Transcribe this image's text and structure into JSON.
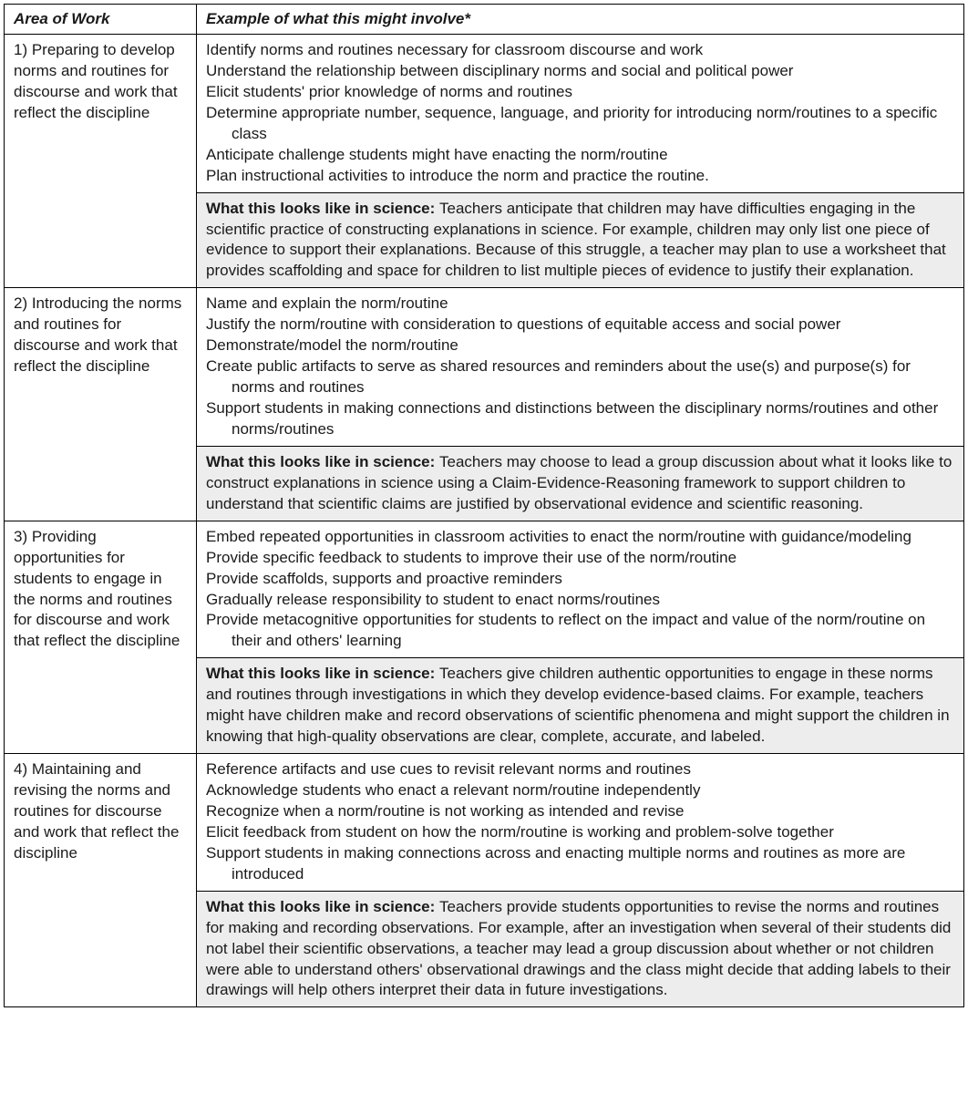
{
  "headers": {
    "area": "Area of Work",
    "example": "Example of what this might involve*"
  },
  "rows": [
    {
      "area": "1) Preparing to develop norms and routines for discourse and work that reflect the discipline",
      "examples": [
        "Identify norms and routines necessary for classroom discourse and work",
        "Understand the relationship between disciplinary norms and social and political power",
        "Elicit students' prior knowledge of norms and routines",
        "Determine appropriate number, sequence, language, and priority for introducing norm/routines to a specific class",
        "Anticipate challenge students might have enacting the norm/routine",
        "Plan instructional activities to introduce the norm and practice the routine."
      ],
      "science_label": "What this looks like in science: ",
      "science_text": "Teachers anticipate that children may have difficulties engaging in the scientific practice of constructing explanations in science. For example, children may only list one piece of evidence to support their explanations. Because of this struggle, a teacher may plan to use a worksheet that provides scaffolding and space for children to list multiple pieces of evidence to justify their explanation."
    },
    {
      "area": "2) Introducing the norms and routines for discourse and work that reflect the discipline",
      "examples": [
        "Name and explain the norm/routine",
        "Justify the norm/routine with consideration to questions of equitable access and social power",
        "Demonstrate/model the norm/routine",
        "Create public artifacts to serve as shared resources and reminders about the use(s) and purpose(s) for norms and routines",
        "Support students in making connections and distinctions between the disciplinary norms/routines and other norms/routines"
      ],
      "science_label": "What this looks like in science: ",
      "science_text": "Teachers may choose to lead a group discussion about what it looks like to construct explanations in science using a Claim-Evidence-Reasoning framework to support children to understand that scientific claims are justified by observational evidence and scientific reasoning."
    },
    {
      "area": "3) Providing opportunities for students to engage in the norms and routines for discourse and work that reflect the discipline",
      "examples": [
        "Embed repeated opportunities in classroom activities to enact the norm/routine with guidance/modeling",
        "Provide specific feedback to students to improve their use of the norm/routine",
        "Provide scaffolds, supports and proactive reminders",
        "Gradually release responsibility to student to enact norms/routines",
        "Provide metacognitive opportunities for students to reflect on the impact and value of the norm/routine on their and others' learning"
      ],
      "science_label": "What this looks like in science: ",
      "science_text": "Teachers give children authentic opportunities to engage in these norms and routines through investigations in which they develop evidence-based claims. For example, teachers might have children make and record observations of scientific phenomena and might support the children in knowing that high-quality observations are clear, complete, accurate, and labeled."
    },
    {
      "area": "4) Maintaining and revising the norms and routines for discourse and work that reflect the discipline",
      "examples": [
        "Reference artifacts and use cues to revisit relevant norms and routines",
        "Acknowledge students who enact a relevant norm/routine independently",
        "Recognize when a norm/routine is not working as intended and revise",
        "Elicit feedback from student on how the norm/routine is working and problem-solve together",
        "Support students in making connections across and enacting multiple norms and routines as more are introduced"
      ],
      "science_label": "What this looks like in science: ",
      "science_text": "Teachers provide students opportunities to revise the norms and routines for making and recording observations. For example, after an investigation when several of their students did not label their scientific observations, a teacher may lead a group discussion about whether or not children were able to understand others' observational drawings and the class might decide that adding labels to their drawings will help others interpret their data in future investigations."
    }
  ]
}
